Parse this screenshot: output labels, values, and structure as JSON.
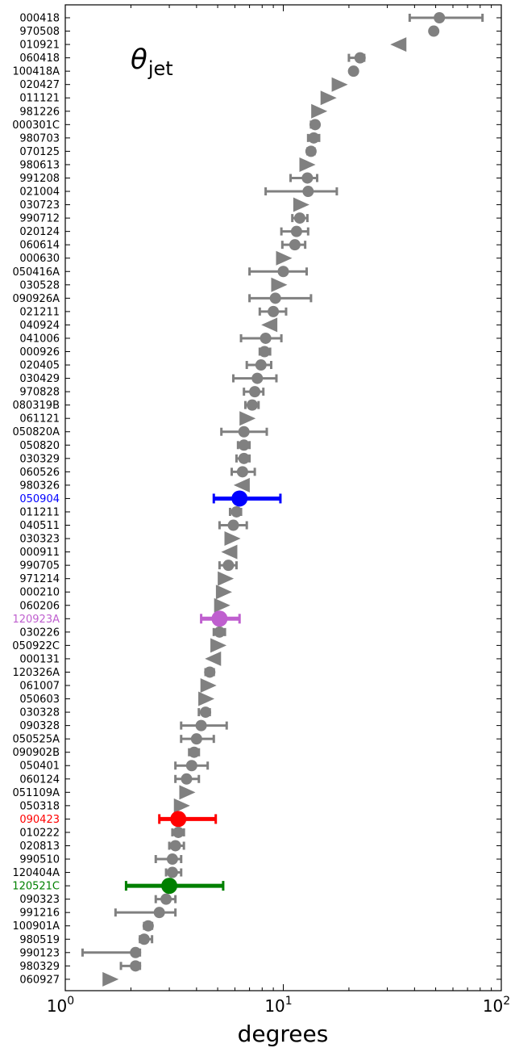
{
  "chart_data": {
    "type": "scatter",
    "title": "θjet",
    "title_main": "θ",
    "title_sub": "jet",
    "xlabel": "degrees",
    "xscale": "log",
    "xlim": [
      1,
      100
    ],
    "x_ticks": [
      {
        "value": 1,
        "base": "10",
        "exp": "0"
      },
      {
        "value": 10,
        "base": "10",
        "exp": "1"
      },
      {
        "value": 100,
        "base": "10",
        "exp": "2"
      }
    ],
    "colors": {
      "default": "#808080",
      "050904": "#0000ff",
      "120923A": "#bf5fcf",
      "090423": "#ff0000",
      "120521C": "#008000"
    },
    "points": [
      {
        "label": "000418",
        "x": 52,
        "lo": 38,
        "hi": 82,
        "marker": "circle"
      },
      {
        "label": "970508",
        "x": 49,
        "marker": "circle"
      },
      {
        "label": "010921",
        "x": 34,
        "marker": "tri-left"
      },
      {
        "label": "060418",
        "x": 22.5,
        "lo": 20,
        "hi": 23.5,
        "marker": "circle"
      },
      {
        "label": "100418A",
        "x": 21,
        "marker": "circle"
      },
      {
        "label": "020427",
        "x": 18,
        "marker": "tri-right"
      },
      {
        "label": "011121",
        "x": 16,
        "marker": "tri-right"
      },
      {
        "label": "981226",
        "x": 14.5,
        "marker": "tri-right"
      },
      {
        "label": "000301C",
        "x": 14,
        "lo": 13.4,
        "hi": 14.4,
        "marker": "circle"
      },
      {
        "label": "980703",
        "x": 13.8,
        "lo": 13,
        "hi": 14.6,
        "marker": "circle"
      },
      {
        "label": "070125",
        "x": 13.4,
        "lo": 12.9,
        "hi": 13.9,
        "marker": "circle"
      },
      {
        "label": "980613",
        "x": 12.8,
        "marker": "tri-right"
      },
      {
        "label": "991208",
        "x": 12.9,
        "lo": 10.8,
        "hi": 14.3,
        "marker": "circle"
      },
      {
        "label": "021004",
        "x": 13,
        "lo": 8.3,
        "hi": 17.6,
        "marker": "circle"
      },
      {
        "label": "030723",
        "x": 12,
        "marker": "tri-right"
      },
      {
        "label": "990712",
        "x": 11.9,
        "lo": 11,
        "hi": 12.9,
        "marker": "circle"
      },
      {
        "label": "020124",
        "x": 11.5,
        "lo": 9.8,
        "hi": 13,
        "marker": "circle"
      },
      {
        "label": "060614",
        "x": 11.3,
        "lo": 9.9,
        "hi": 12.6,
        "marker": "circle"
      },
      {
        "label": "000630",
        "x": 10,
        "marker": "tri-right"
      },
      {
        "label": "050416A",
        "x": 10,
        "lo": 7,
        "hi": 12.8,
        "marker": "circle"
      },
      {
        "label": "030528",
        "x": 9.5,
        "marker": "tri-right"
      },
      {
        "label": "090926A",
        "x": 9.2,
        "lo": 7,
        "hi": 13.4,
        "marker": "circle"
      },
      {
        "label": "021211",
        "x": 9,
        "lo": 7.8,
        "hi": 10.3,
        "marker": "circle"
      },
      {
        "label": "040924",
        "x": 8.7,
        "marker": "tri-left"
      },
      {
        "label": "041006",
        "x": 8.3,
        "lo": 6.4,
        "hi": 9.8,
        "marker": "circle"
      },
      {
        "label": "000926",
        "x": 8.2,
        "lo": 7.8,
        "hi": 8.7,
        "marker": "circle"
      },
      {
        "label": "020405",
        "x": 7.9,
        "lo": 6.8,
        "hi": 8.8,
        "marker": "circle"
      },
      {
        "label": "030429",
        "x": 7.6,
        "lo": 5.9,
        "hi": 9.3,
        "marker": "circle"
      },
      {
        "label": "970828",
        "x": 7.4,
        "lo": 6.6,
        "hi": 8.1,
        "marker": "circle"
      },
      {
        "label": "080319B",
        "x": 7.2,
        "lo": 6.7,
        "hi": 7.7,
        "marker": "circle"
      },
      {
        "label": "061121",
        "x": 6.8,
        "marker": "tri-right"
      },
      {
        "label": "050820A",
        "x": 6.6,
        "lo": 5.2,
        "hi": 8.4,
        "marker": "circle"
      },
      {
        "label": "050820",
        "x": 6.6,
        "lo": 6.2,
        "hi": 7,
        "marker": "circle"
      },
      {
        "label": "030329",
        "x": 6.6,
        "lo": 6.1,
        "hi": 7,
        "marker": "circle"
      },
      {
        "label": "060526",
        "x": 6.5,
        "lo": 5.8,
        "hi": 7.4,
        "marker": "circle"
      },
      {
        "label": "980326",
        "x": 6.5,
        "marker": "tri-left"
      },
      {
        "label": "050904",
        "x": 6.3,
        "lo": 4.8,
        "hi": 9.7,
        "marker": "circle",
        "highlight": true
      },
      {
        "label": "011211",
        "x": 6.1,
        "lo": 5.7,
        "hi": 6.4,
        "marker": "circle"
      },
      {
        "label": "040511",
        "x": 5.9,
        "lo": 5.1,
        "hi": 6.8,
        "marker": "circle"
      },
      {
        "label": "030323",
        "x": 5.8,
        "marker": "tri-right"
      },
      {
        "label": "000911",
        "x": 5.7,
        "marker": "tri-left"
      },
      {
        "label": "990705",
        "x": 5.6,
        "lo": 5.1,
        "hi": 6.1,
        "marker": "circle"
      },
      {
        "label": "971214",
        "x": 5.4,
        "marker": "tri-right"
      },
      {
        "label": "000210",
        "x": 5.3,
        "marker": "tri-right"
      },
      {
        "label": "060206",
        "x": 5.2,
        "marker": "tri-right"
      },
      {
        "label": "120923A",
        "x": 5.1,
        "lo": 4.2,
        "hi": 6.3,
        "marker": "circle",
        "highlight": true
      },
      {
        "label": "030226",
        "x": 5.1,
        "lo": 4.8,
        "hi": 5.4,
        "marker": "circle"
      },
      {
        "label": "050922C",
        "x": 5,
        "marker": "tri-right"
      },
      {
        "label": "000131",
        "x": 4.8,
        "marker": "tri-left"
      },
      {
        "label": "120326A",
        "x": 4.6,
        "lo": 4.4,
        "hi": 4.8,
        "marker": "circle"
      },
      {
        "label": "061007",
        "x": 4.5,
        "marker": "tri-right"
      },
      {
        "label": "050603",
        "x": 4.4,
        "marker": "tri-right"
      },
      {
        "label": "030328",
        "x": 4.4,
        "lo": 4.1,
        "hi": 4.6,
        "marker": "circle"
      },
      {
        "label": "090328",
        "x": 4.2,
        "lo": 3.4,
        "hi": 5.5,
        "marker": "circle"
      },
      {
        "label": "050525A",
        "x": 4,
        "lo": 3.4,
        "hi": 4.8,
        "marker": "circle"
      },
      {
        "label": "090902B",
        "x": 3.9,
        "lo": 3.7,
        "hi": 4.1,
        "marker": "circle"
      },
      {
        "label": "050401",
        "x": 3.8,
        "lo": 3.2,
        "hi": 4.5,
        "marker": "circle"
      },
      {
        "label": "060124",
        "x": 3.6,
        "lo": 3.2,
        "hi": 4.1,
        "marker": "circle"
      },
      {
        "label": "051109A",
        "x": 3.6,
        "marker": "tri-right"
      },
      {
        "label": "050318",
        "x": 3.4,
        "marker": "tri-right"
      },
      {
        "label": "090423",
        "x": 3.3,
        "lo": 2.7,
        "hi": 4.9,
        "marker": "circle",
        "highlight": true
      },
      {
        "label": "010222",
        "x": 3.3,
        "lo": 3.1,
        "hi": 3.5,
        "marker": "circle"
      },
      {
        "label": "020813",
        "x": 3.2,
        "lo": 3,
        "hi": 3.5,
        "marker": "circle"
      },
      {
        "label": "990510",
        "x": 3.1,
        "lo": 2.6,
        "hi": 3.4,
        "marker": "circle"
      },
      {
        "label": "120404A",
        "x": 3.1,
        "lo": 2.9,
        "hi": 3.4,
        "marker": "circle"
      },
      {
        "label": "120521C",
        "x": 3,
        "lo": 1.9,
        "hi": 5.3,
        "marker": "circle",
        "highlight": true
      },
      {
        "label": "090323",
        "x": 2.9,
        "lo": 2.6,
        "hi": 3.2,
        "marker": "circle"
      },
      {
        "label": "991216",
        "x": 2.7,
        "lo": 1.7,
        "hi": 3.2,
        "marker": "circle"
      },
      {
        "label": "100901A",
        "x": 2.4,
        "lo": 2.3,
        "hi": 2.5,
        "marker": "circle"
      },
      {
        "label": "980519",
        "x": 2.3,
        "lo": 2.2,
        "hi": 2.5,
        "marker": "circle"
      },
      {
        "label": "990123",
        "x": 2.1,
        "lo": 1.2,
        "hi": 2.2,
        "marker": "circle"
      },
      {
        "label": "980329",
        "x": 2.1,
        "lo": 1.8,
        "hi": 2.2,
        "marker": "circle"
      },
      {
        "label": "060927",
        "x": 1.6,
        "marker": "tri-right"
      }
    ]
  }
}
